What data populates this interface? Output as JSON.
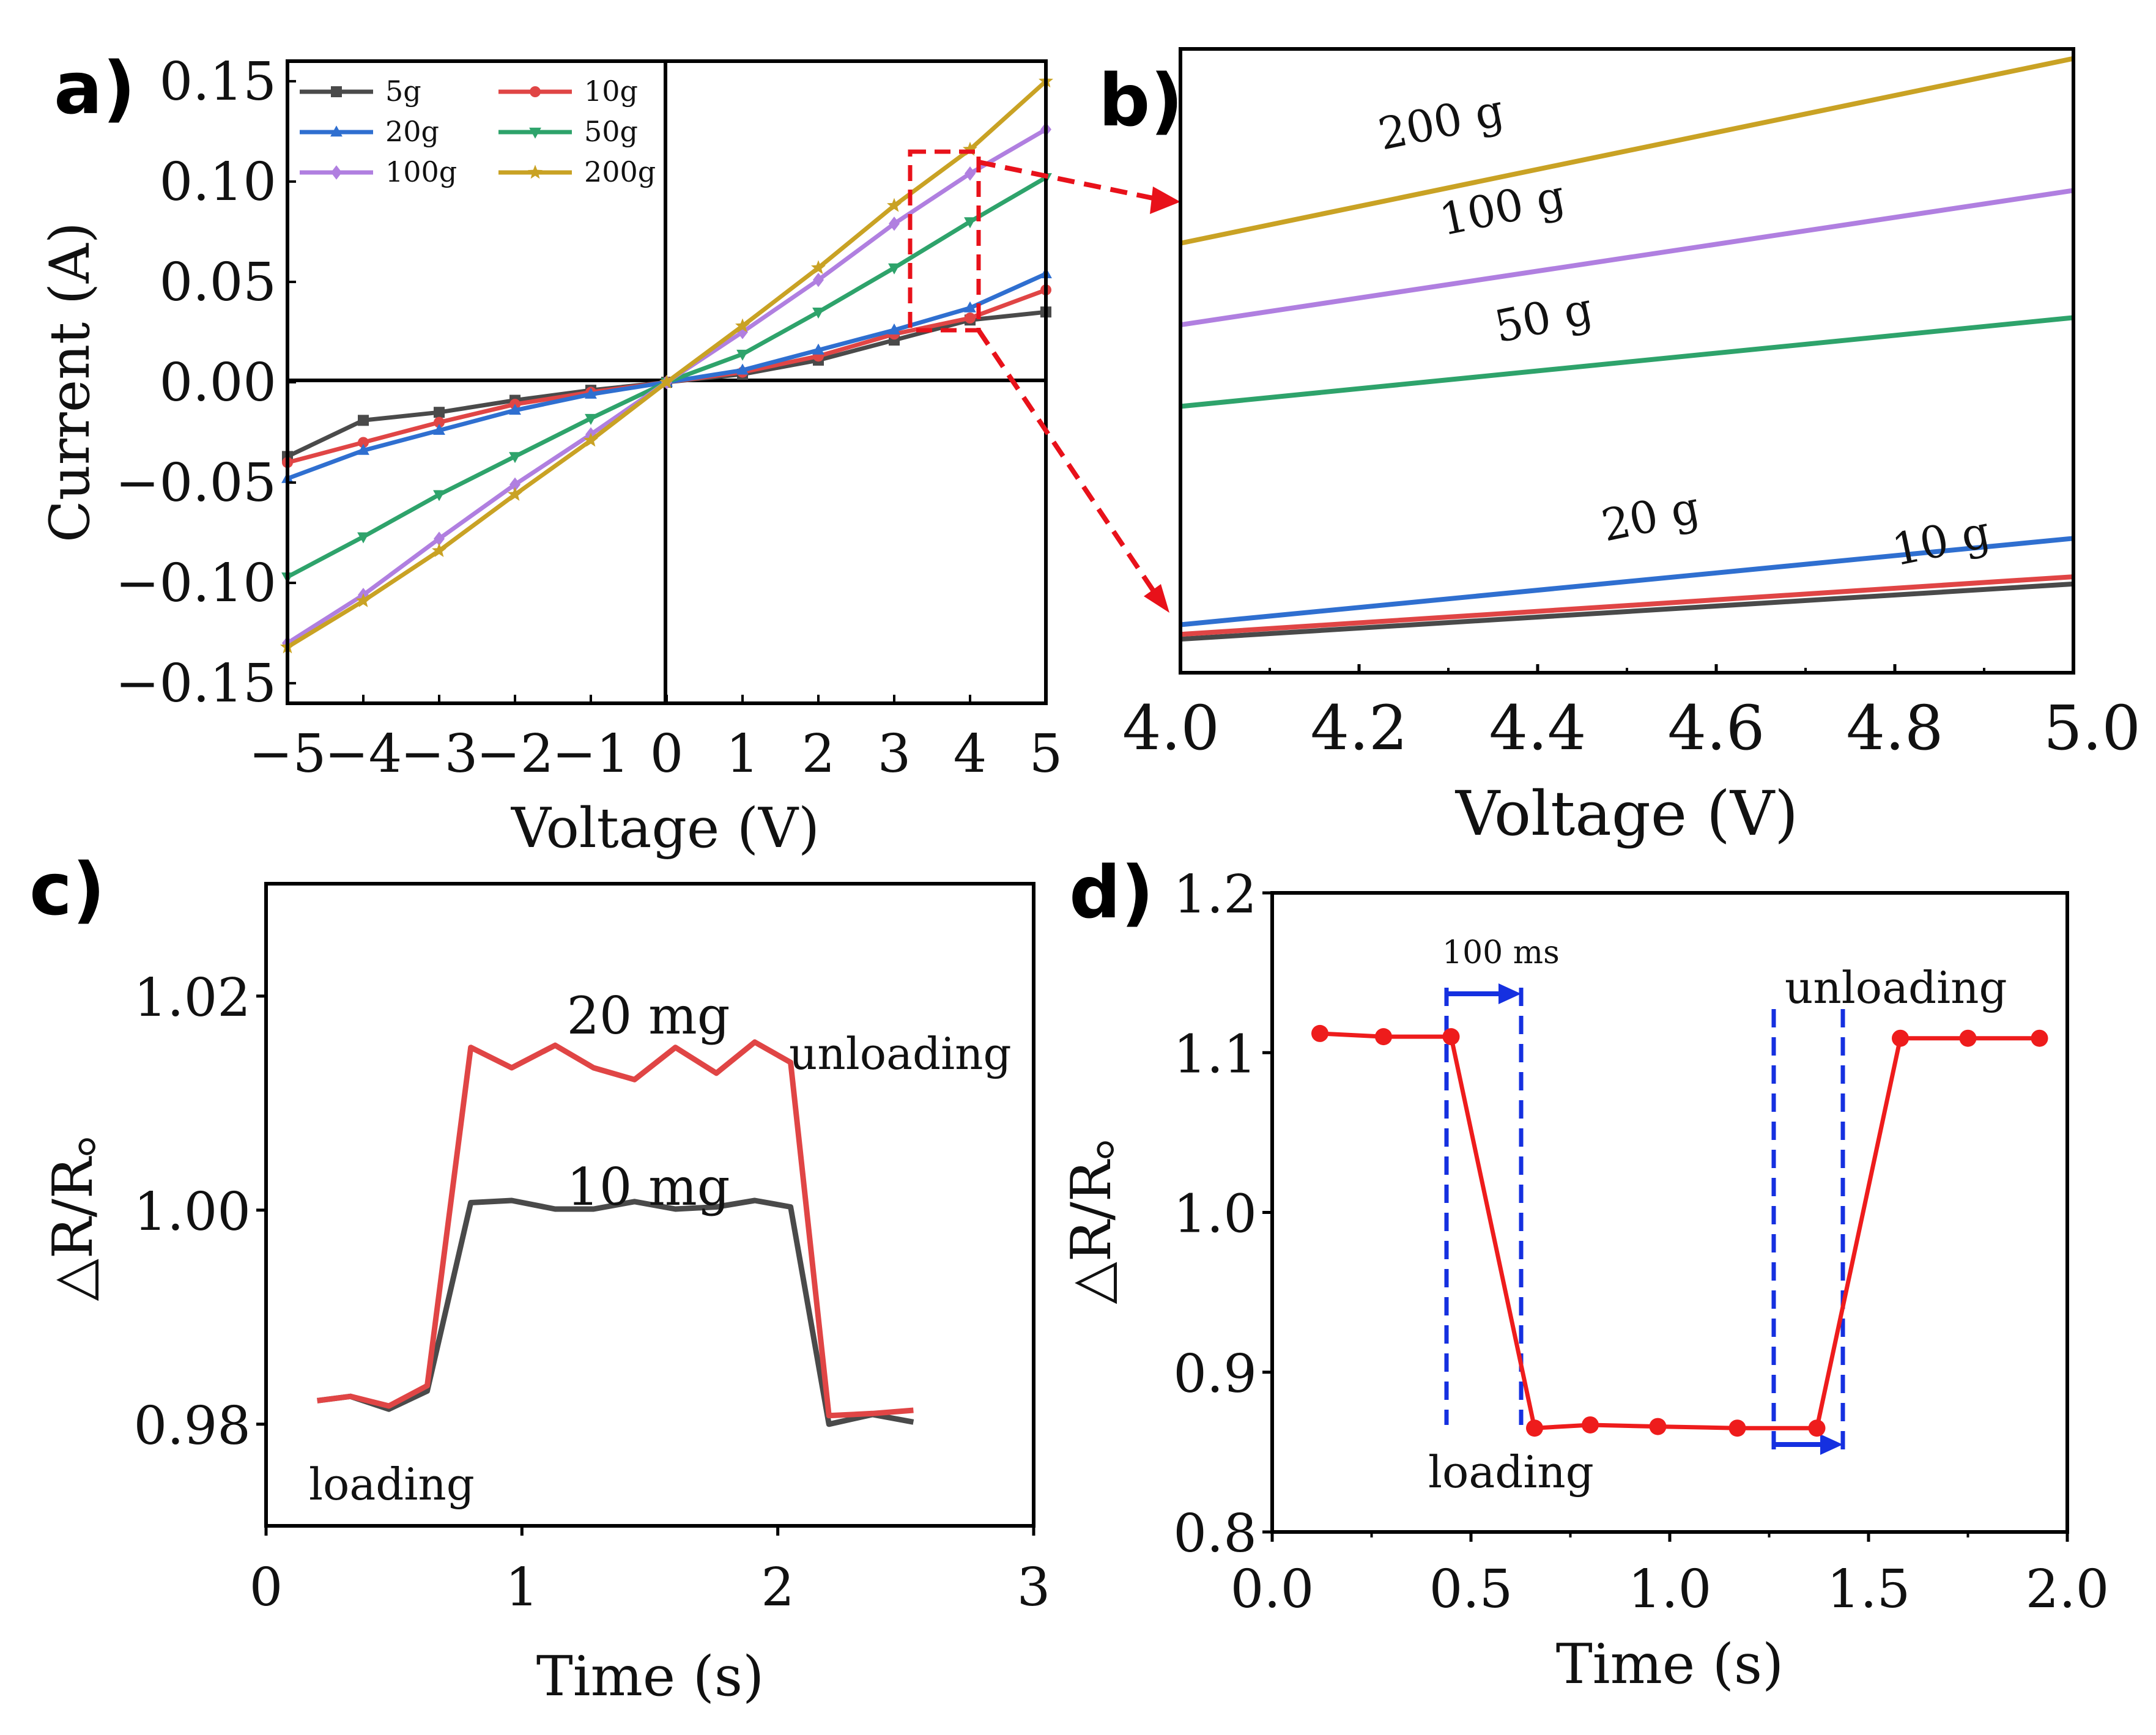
{
  "panels": {
    "a": {
      "label": "a)"
    },
    "b": {
      "label": "b)"
    },
    "c": {
      "label": "c)"
    },
    "d": {
      "label": "d)"
    }
  },
  "colors": {
    "5g": "#4a4a4a",
    "10g": "#e04545",
    "20g": "#2f6fd0",
    "50g": "#2ea36b",
    "100g": "#b07fe0",
    "200g": "#c9a224",
    "arrow_red": "#e8111a",
    "arrow_blue": "#1530e0",
    "d_series": "#ee1c1c"
  },
  "chart_data": [
    {
      "id": "a",
      "type": "line",
      "xlabel": "Voltage (V)",
      "ylabel": "Current (A)",
      "xlim": [
        -5,
        5
      ],
      "ylim": [
        -0.16,
        0.16
      ],
      "xticks": [
        "−5",
        "−4",
        "−3",
        "−2",
        "−1",
        "0",
        "1",
        "2",
        "3",
        "4",
        "5"
      ],
      "yticks": [
        "0.15",
        "0.10",
        "0.05",
        "0.00",
        "−0.05",
        "−0.10",
        "−0.15"
      ],
      "ytick_values": [
        0.15,
        0.1,
        0.05,
        0.0,
        -0.05,
        -0.1,
        -0.15
      ],
      "x": [
        -5,
        -4,
        -3,
        -2,
        -1,
        0,
        1,
        2,
        3,
        4,
        5
      ],
      "series": [
        {
          "name": "5g",
          "marker": "square",
          "values": [
            -0.037,
            -0.019,
            -0.015,
            -0.009,
            -0.004,
            0,
            0.004,
            0.011,
            0.021,
            0.031,
            0.035
          ]
        },
        {
          "name": "10g",
          "marker": "circle",
          "values": [
            -0.04,
            -0.03,
            -0.02,
            -0.011,
            -0.005,
            0,
            0.005,
            0.013,
            0.024,
            0.032,
            0.046
          ]
        },
        {
          "name": "20g",
          "marker": "triangle-up",
          "values": [
            -0.048,
            -0.034,
            -0.024,
            -0.014,
            -0.006,
            0,
            0.006,
            0.016,
            0.026,
            0.037,
            0.054
          ]
        },
        {
          "name": "50g",
          "marker": "triangle-down",
          "values": [
            -0.097,
            -0.077,
            -0.056,
            -0.037,
            -0.018,
            0,
            0.014,
            0.035,
            0.057,
            0.08,
            0.102
          ]
        },
        {
          "name": "100g",
          "marker": "diamond",
          "values": [
            -0.13,
            -0.106,
            -0.078,
            -0.051,
            -0.026,
            0,
            0.025,
            0.051,
            0.079,
            0.104,
            0.126
          ]
        },
        {
          "name": "200g",
          "marker": "star",
          "values": [
            -0.132,
            -0.109,
            -0.084,
            -0.056,
            -0.029,
            0,
            0.028,
            0.057,
            0.088,
            0.116,
            0.15
          ]
        }
      ]
    },
    {
      "id": "b",
      "type": "line",
      "xlabel": "Voltage (V)",
      "xlim": [
        4.0,
        5.0
      ],
      "xticks": [
        "4.0",
        "4.2",
        "4.4",
        "4.6",
        "4.8",
        "5.0"
      ],
      "xtick_values": [
        4.0,
        4.2,
        4.4,
        4.6,
        4.8,
        5.0
      ],
      "ylim": [
        0.026,
        0.156
      ],
      "x": [
        4.0,
        5.0
      ],
      "series": [
        {
          "name": "200 g",
          "color_key": "200g",
          "values": [
            0.1155,
            0.154
          ]
        },
        {
          "name": "100 g",
          "color_key": "100g",
          "values": [
            0.0985,
            0.1265
          ]
        },
        {
          "name": "50 g",
          "color_key": "50g",
          "values": [
            0.0815,
            0.1
          ]
        },
        {
          "name": "20 g",
          "color_key": "20g",
          "values": [
            0.036,
            0.054
          ]
        },
        {
          "name": "10 g",
          "color_key": "10g",
          "values": [
            0.034,
            0.046
          ]
        },
        {
          "name": "",
          "color_key": "5g",
          "values": [
            0.033,
            0.0445
          ]
        }
      ],
      "labels": [
        "200 g",
        "100 g",
        "50 g",
        "20 g",
        "10 g"
      ]
    },
    {
      "id": "c",
      "type": "line",
      "xlabel": "Time (s)",
      "ylabel": "△R/R。",
      "xlim": [
        0,
        3
      ],
      "ylim": [
        0.9705,
        1.0305
      ],
      "xticks": [
        "0",
        "1",
        "2",
        "3"
      ],
      "xtick_values": [
        0,
        1,
        2,
        3
      ],
      "yticks": [
        "1.02",
        "1.00",
        "0.98"
      ],
      "ytick_values": [
        1.02,
        1.0,
        0.98
      ],
      "x": [
        0.2,
        0.33,
        0.48,
        0.63,
        0.8,
        0.96,
        1.13,
        1.28,
        1.44,
        1.6,
        1.76,
        1.91,
        2.05,
        2.2,
        2.37,
        2.53
      ],
      "series": [
        {
          "name": "20 mg",
          "color_key": "10g",
          "values": [
            0.9822,
            0.9826,
            0.9817,
            0.9836,
            1.0152,
            1.0133,
            1.0154,
            1.0133,
            1.0122,
            1.0152,
            1.0128,
            1.0157,
            1.0138,
            0.9808,
            0.981,
            0.9813
          ]
        },
        {
          "name": "10 mg",
          "color_key": "5g",
          "values": [
            0.9822,
            0.9826,
            0.9814,
            0.9831,
            1.0007,
            1.0009,
            1.0001,
            1.0001,
            1.0008,
            1.0001,
            1.0003,
            1.0009,
            1.0003,
            0.98,
            0.9809,
            0.9802
          ]
        }
      ],
      "annotations": {
        "series_top": "20 mg",
        "series_bottom": "10 mg",
        "unloading": "unloading",
        "loading": "loading"
      }
    },
    {
      "id": "d",
      "type": "line",
      "xlabel": "Time (s)",
      "ylabel": "△R/R。",
      "xlim": [
        0,
        2.0
      ],
      "ylim": [
        0.8,
        1.2
      ],
      "xticks": [
        "0.0",
        "0.5",
        "1.0",
        "1.5",
        "2.0"
      ],
      "xtick_values": [
        0,
        0.5,
        1.0,
        1.5,
        2.0
      ],
      "yticks": [
        "1.2",
        "1.1",
        "1.0",
        "0.9",
        "0.8"
      ],
      "ytick_values": [
        1.2,
        1.1,
        1.0,
        0.9,
        0.8
      ],
      "x": [
        0.12,
        0.28,
        0.45,
        0.66,
        0.8,
        0.97,
        1.17,
        1.37,
        1.58,
        1.75,
        1.93
      ],
      "series": [
        {
          "name": "ΔR/R0",
          "color_key": "d_series",
          "values": [
            1.112,
            1.11,
            1.11,
            0.865,
            0.867,
            0.866,
            0.865,
            0.865,
            1.109,
            1.109,
            1.109
          ]
        }
      ],
      "annotations": {
        "response": "100 ms",
        "unloading": "unloading",
        "loading": "loading"
      }
    }
  ]
}
